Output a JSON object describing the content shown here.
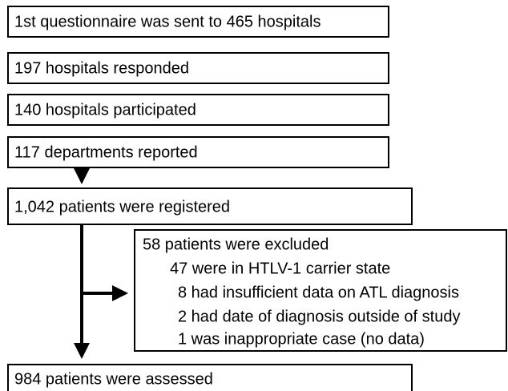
{
  "nodes": [
    {
      "label": "1st questionnaire was sent to 465 hospitals"
    },
    {
      "label": "197 hospitals responded"
    },
    {
      "label": "140 hospitals participated"
    },
    {
      "label": "117 departments reported"
    },
    {
      "label": "1,042 patients were registered"
    },
    {
      "label": "984 patients were assessed"
    }
  ],
  "exclusion": {
    "title": "58 patients were excluded",
    "items": [
      "47 were in HTLV-1 carrier state",
      "8 had insufficient data on ATL diagnosis",
      "2 had date of diagnosis outside of study",
      "1 was inappropriate case (no data)"
    ]
  }
}
